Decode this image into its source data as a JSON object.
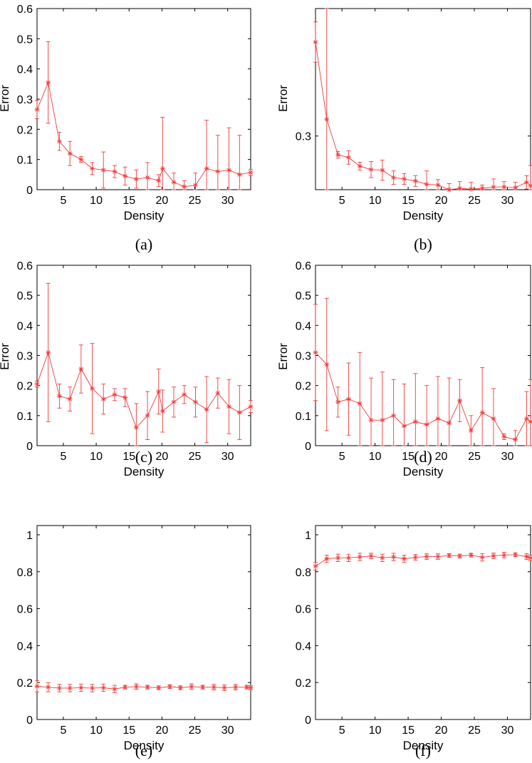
{
  "colors": {
    "series": "#ef3b3b",
    "axes": "#000000",
    "background": "#ffffff"
  },
  "chart_data": [
    {
      "type": "line",
      "caption": "(a)",
      "ylabel": "Error",
      "xlabel": "Density",
      "xlim": [
        1,
        33.5
      ],
      "ylim": [
        0,
        0.6
      ],
      "xticks": [
        5,
        10,
        15,
        20,
        25,
        30
      ],
      "yticks": [
        0,
        0.1,
        0.2,
        0.3,
        0.4,
        0.5,
        0.6
      ],
      "ytick_labels": [
        "0",
        "0.1",
        "0.2",
        "0.3",
        "0.4",
        "0.5",
        "0.6"
      ],
      "grid": false,
      "series": [
        {
          "x": [
            1,
            2.7,
            4.4,
            6.0,
            7.7,
            9.4,
            11.1,
            12.8,
            14.4,
            16.1,
            17.8,
            19.5,
            20.1,
            21.8,
            23.4,
            25.1,
            26.8,
            28.5,
            30.2,
            31.8,
            33.5
          ],
          "y": [
            0.265,
            0.355,
            0.16,
            0.12,
            0.1,
            0.07,
            0.065,
            0.06,
            0.045,
            0.035,
            0.04,
            0.03,
            0.07,
            0.025,
            0.01,
            0.015,
            0.07,
            0.06,
            0.065,
            0.05,
            0.057
          ],
          "err": [
            0.03,
            0.135,
            0.03,
            0.04,
            0.01,
            0.02,
            0.06,
            0.02,
            0.03,
            0.03,
            0.05,
            0.02,
            0.17,
            0.03,
            0.02,
            0.04,
            0.16,
            0.12,
            0.14,
            0.13,
            0.01
          ]
        }
      ]
    },
    {
      "type": "line",
      "caption": "(b)",
      "ylabel": "Error",
      "xlabel": "Density",
      "xlim": [
        1,
        33.5
      ],
      "ylim": [
        0.22,
        0.49
      ],
      "xticks": [
        5,
        10,
        15,
        20,
        25,
        30
      ],
      "yticks": [
        0.3
      ],
      "ytick_labels": [
        "0.3"
      ],
      "grid": false,
      "series": [
        {
          "x": [
            1,
            2.7,
            4.4,
            6.0,
            7.7,
            9.4,
            11.1,
            12.8,
            14.4,
            16.1,
            17.8,
            19.5,
            21.2,
            22.8,
            24.5,
            26.2,
            27.9,
            29.5,
            31.2,
            32.9,
            33.5
          ],
          "y": [
            0.44,
            0.325,
            0.272,
            0.268,
            0.255,
            0.25,
            0.249,
            0.238,
            0.236,
            0.233,
            0.228,
            0.227,
            0.219,
            0.222,
            0.221,
            0.222,
            0.224,
            0.224,
            0.223,
            0.231,
            0.226
          ],
          "err": [
            0.03,
            0.17,
            0.005,
            0.01,
            0.006,
            0.012,
            0.015,
            0.01,
            0.008,
            0.008,
            0.02,
            0.008,
            0.01,
            0.01,
            0.01,
            0.005,
            0.012,
            0.008,
            0.008,
            0.01,
            0.03
          ]
        }
      ]
    },
    {
      "type": "line",
      "caption": "(c)",
      "ylabel": "Error",
      "xlabel": "Density",
      "xlim": [
        1,
        33.5
      ],
      "ylim": [
        0,
        0.6
      ],
      "xticks": [
        5,
        10,
        15,
        20,
        25,
        30
      ],
      "yticks": [
        0,
        0.1,
        0.2,
        0.3,
        0.4,
        0.5,
        0.6
      ],
      "ytick_labels": [
        "0",
        "0.1",
        "0.2",
        "0.3",
        "0.4",
        "0.5",
        "0.6"
      ],
      "grid": false,
      "series": [
        {
          "x": [
            1,
            2.7,
            4.4,
            6.0,
            7.7,
            9.4,
            11.1,
            12.8,
            14.4,
            16.1,
            17.8,
            19.5,
            20.1,
            21.8,
            23.4,
            25.1,
            26.8,
            28.5,
            30.2,
            31.8,
            33.5
          ],
          "y": [
            0.205,
            0.31,
            0.165,
            0.155,
            0.255,
            0.19,
            0.155,
            0.17,
            0.16,
            0.06,
            0.1,
            0.18,
            0.115,
            0.145,
            0.17,
            0.145,
            0.12,
            0.175,
            0.13,
            0.11,
            0.13
          ],
          "err": [
            0.01,
            0.23,
            0.04,
            0.04,
            0.08,
            0.15,
            0.05,
            0.02,
            0.03,
            0.08,
            0.08,
            0.075,
            0.07,
            0.05,
            0.03,
            0.05,
            0.11,
            0.05,
            0.09,
            0.09,
            0.02
          ]
        }
      ]
    },
    {
      "type": "line",
      "caption": "(d)",
      "ylabel": "Error",
      "xlabel": "Density",
      "xlim": [
        1,
        33.5
      ],
      "ylim": [
        0,
        0.6
      ],
      "xticks": [
        5,
        10,
        15,
        20,
        25,
        30
      ],
      "yticks": [
        0,
        0.1,
        0.2,
        0.3,
        0.4,
        0.5,
        0.6
      ],
      "ytick_labels": [
        "0",
        "0.1",
        "0.2",
        "0.3",
        "0.4",
        "0.5",
        "0.6"
      ],
      "grid": false,
      "series": [
        {
          "x": [
            1,
            2.7,
            4.4,
            6.0,
            7.7,
            9.4,
            11.1,
            12.8,
            14.4,
            16.1,
            17.8,
            19.5,
            21.2,
            22.8,
            24.5,
            26.2,
            27.9,
            29.5,
            31.2,
            32.9,
            33.5
          ],
          "y": [
            0.31,
            0.27,
            0.145,
            0.155,
            0.14,
            0.085,
            0.085,
            0.1,
            0.065,
            0.08,
            0.07,
            0.09,
            0.075,
            0.15,
            0.05,
            0.11,
            0.09,
            0.03,
            0.02,
            0.09,
            0.08
          ],
          "err": [
            0.16,
            0.22,
            0.05,
            0.12,
            0.17,
            0.14,
            0.16,
            0.12,
            0.14,
            0.16,
            0.13,
            0.14,
            0.15,
            0.07,
            0.05,
            0.15,
            0.1,
            0.01,
            0.03,
            0.09,
            0.14
          ]
        }
      ]
    },
    {
      "type": "line",
      "caption": "(e)",
      "ylabel": "",
      "xlabel": "Density",
      "xlim": [
        1,
        33.5
      ],
      "ylim": [
        0,
        1.05
      ],
      "xticks": [
        5,
        10,
        15,
        20,
        25,
        30
      ],
      "yticks": [
        0,
        0.2,
        0.4,
        0.6,
        0.8,
        1
      ],
      "ytick_labels": [
        "0",
        "0.2",
        "0.4",
        "0.6",
        "0.8",
        "1"
      ],
      "grid": false,
      "series": [
        {
          "x": [
            1,
            2.7,
            4.4,
            6.0,
            7.7,
            9.4,
            11.1,
            12.8,
            14.4,
            16.1,
            17.8,
            19.5,
            21.2,
            22.8,
            24.5,
            26.2,
            27.9,
            29.5,
            31.2,
            32.9,
            33.5
          ],
          "y": [
            0.18,
            0.175,
            0.17,
            0.17,
            0.172,
            0.17,
            0.172,
            0.165,
            0.175,
            0.178,
            0.175,
            0.172,
            0.178,
            0.172,
            0.178,
            0.175,
            0.175,
            0.172,
            0.175,
            0.175,
            0.172
          ],
          "err": [
            0.03,
            0.025,
            0.02,
            0.02,
            0.02,
            0.02,
            0.02,
            0.02,
            0.01,
            0.015,
            0.01,
            0.01,
            0.01,
            0.01,
            0.015,
            0.01,
            0.015,
            0.015,
            0.015,
            0.01,
            0.01
          ]
        }
      ]
    },
    {
      "type": "line",
      "caption": "(f)",
      "ylabel": "",
      "xlabel": "Density",
      "xlim": [
        1,
        33.5
      ],
      "ylim": [
        0,
        1.05
      ],
      "xticks": [
        5,
        10,
        15,
        20,
        25,
        30
      ],
      "yticks": [
        0,
        0.2,
        0.4,
        0.6,
        0.8,
        1
      ],
      "ytick_labels": [
        "0",
        "0.2",
        "0.4",
        "0.6",
        "0.8",
        "1"
      ],
      "grid": false,
      "series": [
        {
          "x": [
            1,
            2.7,
            4.4,
            6.0,
            7.7,
            9.4,
            11.1,
            12.8,
            14.4,
            16.1,
            17.8,
            19.5,
            21.2,
            22.8,
            24.5,
            26.2,
            27.9,
            29.5,
            31.2,
            32.9,
            33.5
          ],
          "y": [
            0.83,
            0.87,
            0.875,
            0.875,
            0.88,
            0.885,
            0.875,
            0.88,
            0.87,
            0.878,
            0.882,
            0.882,
            0.888,
            0.885,
            0.89,
            0.878,
            0.886,
            0.89,
            0.892,
            0.882,
            0.875
          ],
          "err": [
            0.02,
            0.02,
            0.02,
            0.02,
            0.02,
            0.015,
            0.02,
            0.02,
            0.02,
            0.015,
            0.015,
            0.015,
            0.01,
            0.01,
            0.01,
            0.02,
            0.015,
            0.015,
            0.01,
            0.015,
            0.015
          ]
        }
      ]
    }
  ]
}
